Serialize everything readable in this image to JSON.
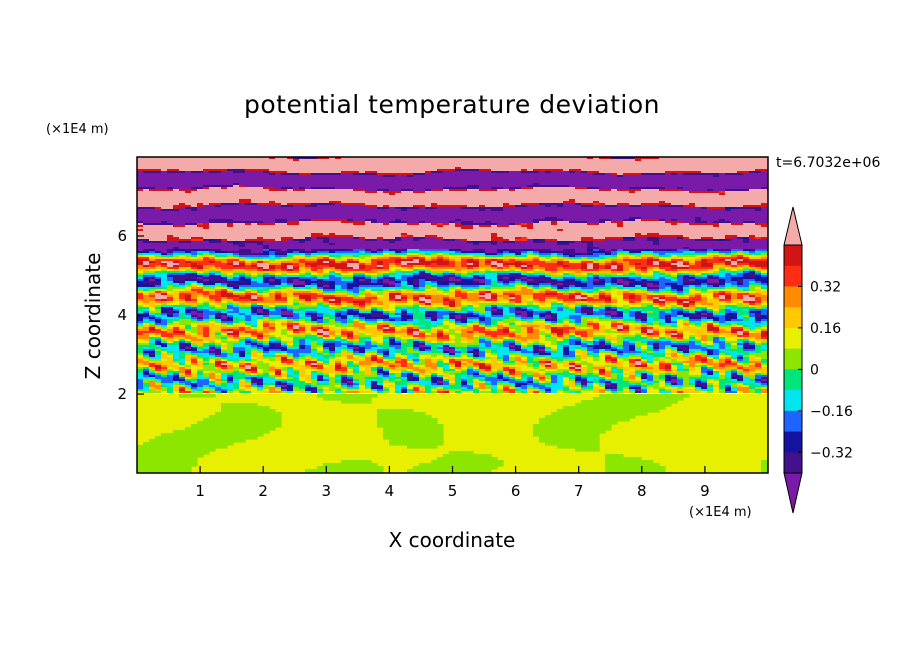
{
  "chart_data": {
    "type": "heatmap",
    "title": "potential temperature deviation",
    "xlabel": "X coordinate",
    "ylabel": "Z coordinate",
    "x_unit": "(×1E4 m)",
    "y_unit": "(×1E4 m)",
    "time_label": "t=6.7032e+06",
    "xlim": [
      0,
      10
    ],
    "ylim": [
      0,
      8
    ],
    "x_ticks": [
      1,
      2,
      3,
      4,
      5,
      6,
      7,
      8,
      9
    ],
    "y_ticks": [
      2,
      4,
      6
    ],
    "colorbar": {
      "levels": [
        -0.48,
        -0.4,
        -0.32,
        -0.24,
        -0.16,
        -0.08,
        0,
        0.08,
        0.16,
        0.24,
        0.32,
        0.4,
        0.48
      ],
      "tick_values": [
        "0.32",
        "0.16",
        "0",
        "−0.16",
        "−0.32"
      ],
      "colors": [
        "#7a1aa8",
        "#42108c",
        "#1414a0",
        "#1e64ff",
        "#00e6f0",
        "#00e67a",
        "#8ce600",
        "#e6f000",
        "#ffc800",
        "#ff8c00",
        "#ff2d14",
        "#d21414",
        "#f5aaaa"
      ],
      "extend": "both"
    },
    "regions": {
      "lower_layer_top_z": 2.0,
      "lower_layer_values": [
        0.0,
        0.05
      ],
      "upper_band_levels": [
        -0.48,
        0.48
      ]
    }
  }
}
